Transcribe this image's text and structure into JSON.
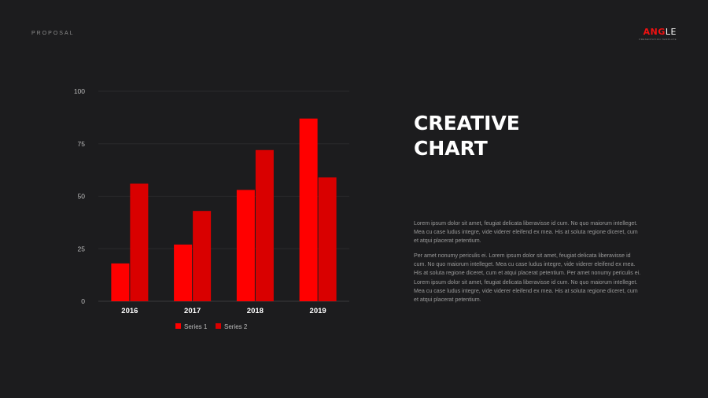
{
  "header": {
    "label": "PROPOSAL",
    "logo": {
      "part_a": "ANG",
      "part_b": "LE",
      "tagline": "PRESENTATION TEMPLATE"
    }
  },
  "title": {
    "line1": "CREATIVE",
    "line2": "CHART"
  },
  "body": {
    "p1": "Lorem ipsum dolor sit amet, feugiat delicata liberavisse id cum. No quo maiorum intelleget. Mea cu case ludus integre, vide viderer eleifend ex mea. His at soluta regione diceret, cum et atqui placerat petentium.",
    "p2": "Per amet nonumy periculis ei. Lorem ipsum dolor sit amet, feugiat delicata liberavisse id cum. No quo maiorum intelleget. Mea cu case ludus integre, vide viderer eleifend ex mea. His at soluta regione diceret, cum et atqui placerat petentium. Per amet nonumy periculis ei. Lorem ipsum dolor sit amet, feugiat delicata liberavisse id cum. No quo maiorum intelleget. Mea cu case ludus integre, vide viderer eleifend ex mea. His at soluta regione diceret, cum et atqui placerat petentium."
  },
  "colors": {
    "series1": "#ff0000",
    "series2": "#d90000",
    "background": "#1c1c1e"
  },
  "chart_data": {
    "type": "bar",
    "categories": [
      "2016",
      "2017",
      "2018",
      "2019"
    ],
    "series": [
      {
        "name": "Series 1",
        "values": [
          18,
          27,
          53,
          87
        ]
      },
      {
        "name": "Series 2",
        "values": [
          56,
          43,
          72,
          59
        ]
      }
    ],
    "ylim": [
      0,
      100
    ],
    "yticks": [
      0,
      25,
      50,
      75,
      100
    ],
    "grid": true,
    "legend": "bottom"
  }
}
